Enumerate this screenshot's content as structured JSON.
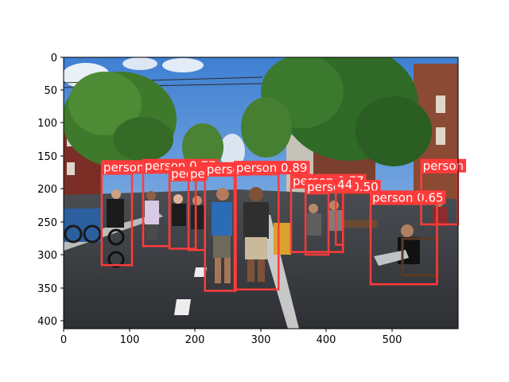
{
  "figure": {
    "x_ticks": [
      "0",
      "100",
      "200",
      "300",
      "400",
      "500"
    ],
    "y_ticks": [
      "0",
      "50",
      "100",
      "150",
      "200",
      "250",
      "300",
      "350",
      "400"
    ]
  },
  "image": {
    "description": "Street photo with people standing in a road; object detection boxes drawn over the people",
    "box_color": "#ff3b3b",
    "label_text_color": "#ffffff"
  },
  "detections": [
    {
      "label": "person 0.77",
      "x": [
        58,
        104
      ],
      "y": [
        177,
        316
      ]
    },
    {
      "label": "person 0.77",
      "x": [
        121,
        161
      ],
      "y": [
        175,
        287
      ]
    },
    {
      "label": "peo",
      "x": [
        161,
        201
      ],
      "y": [
        187,
        291
      ]
    },
    {
      "label": "pe",
      "x": [
        190,
        215
      ],
      "y": [
        187,
        293
      ]
    },
    {
      "label": "person",
      "x": [
        215,
        262
      ],
      "y": [
        180,
        355
      ]
    },
    {
      "label": "person 0.89",
      "x": [
        260,
        327
      ],
      "y": [
        178,
        353
      ]
    },
    {
      "label": "person 0.77",
      "x": [
        346,
        425
      ],
      "y": [
        198,
        296
      ]
    },
    {
      "label": "person 0.50",
      "x": [
        368,
        403
      ],
      "y": [
        207,
        300
      ]
    },
    {
      "label": "44",
      "x": [
        414,
        425
      ],
      "y": [
        203,
        285
      ]
    },
    {
      "label": "person 0.65",
      "x": [
        467,
        568
      ],
      "y": [
        223,
        345
      ]
    },
    {
      "label": "person",
      "x": [
        544,
        600
      ],
      "y": [
        175,
        254
      ]
    }
  ]
}
